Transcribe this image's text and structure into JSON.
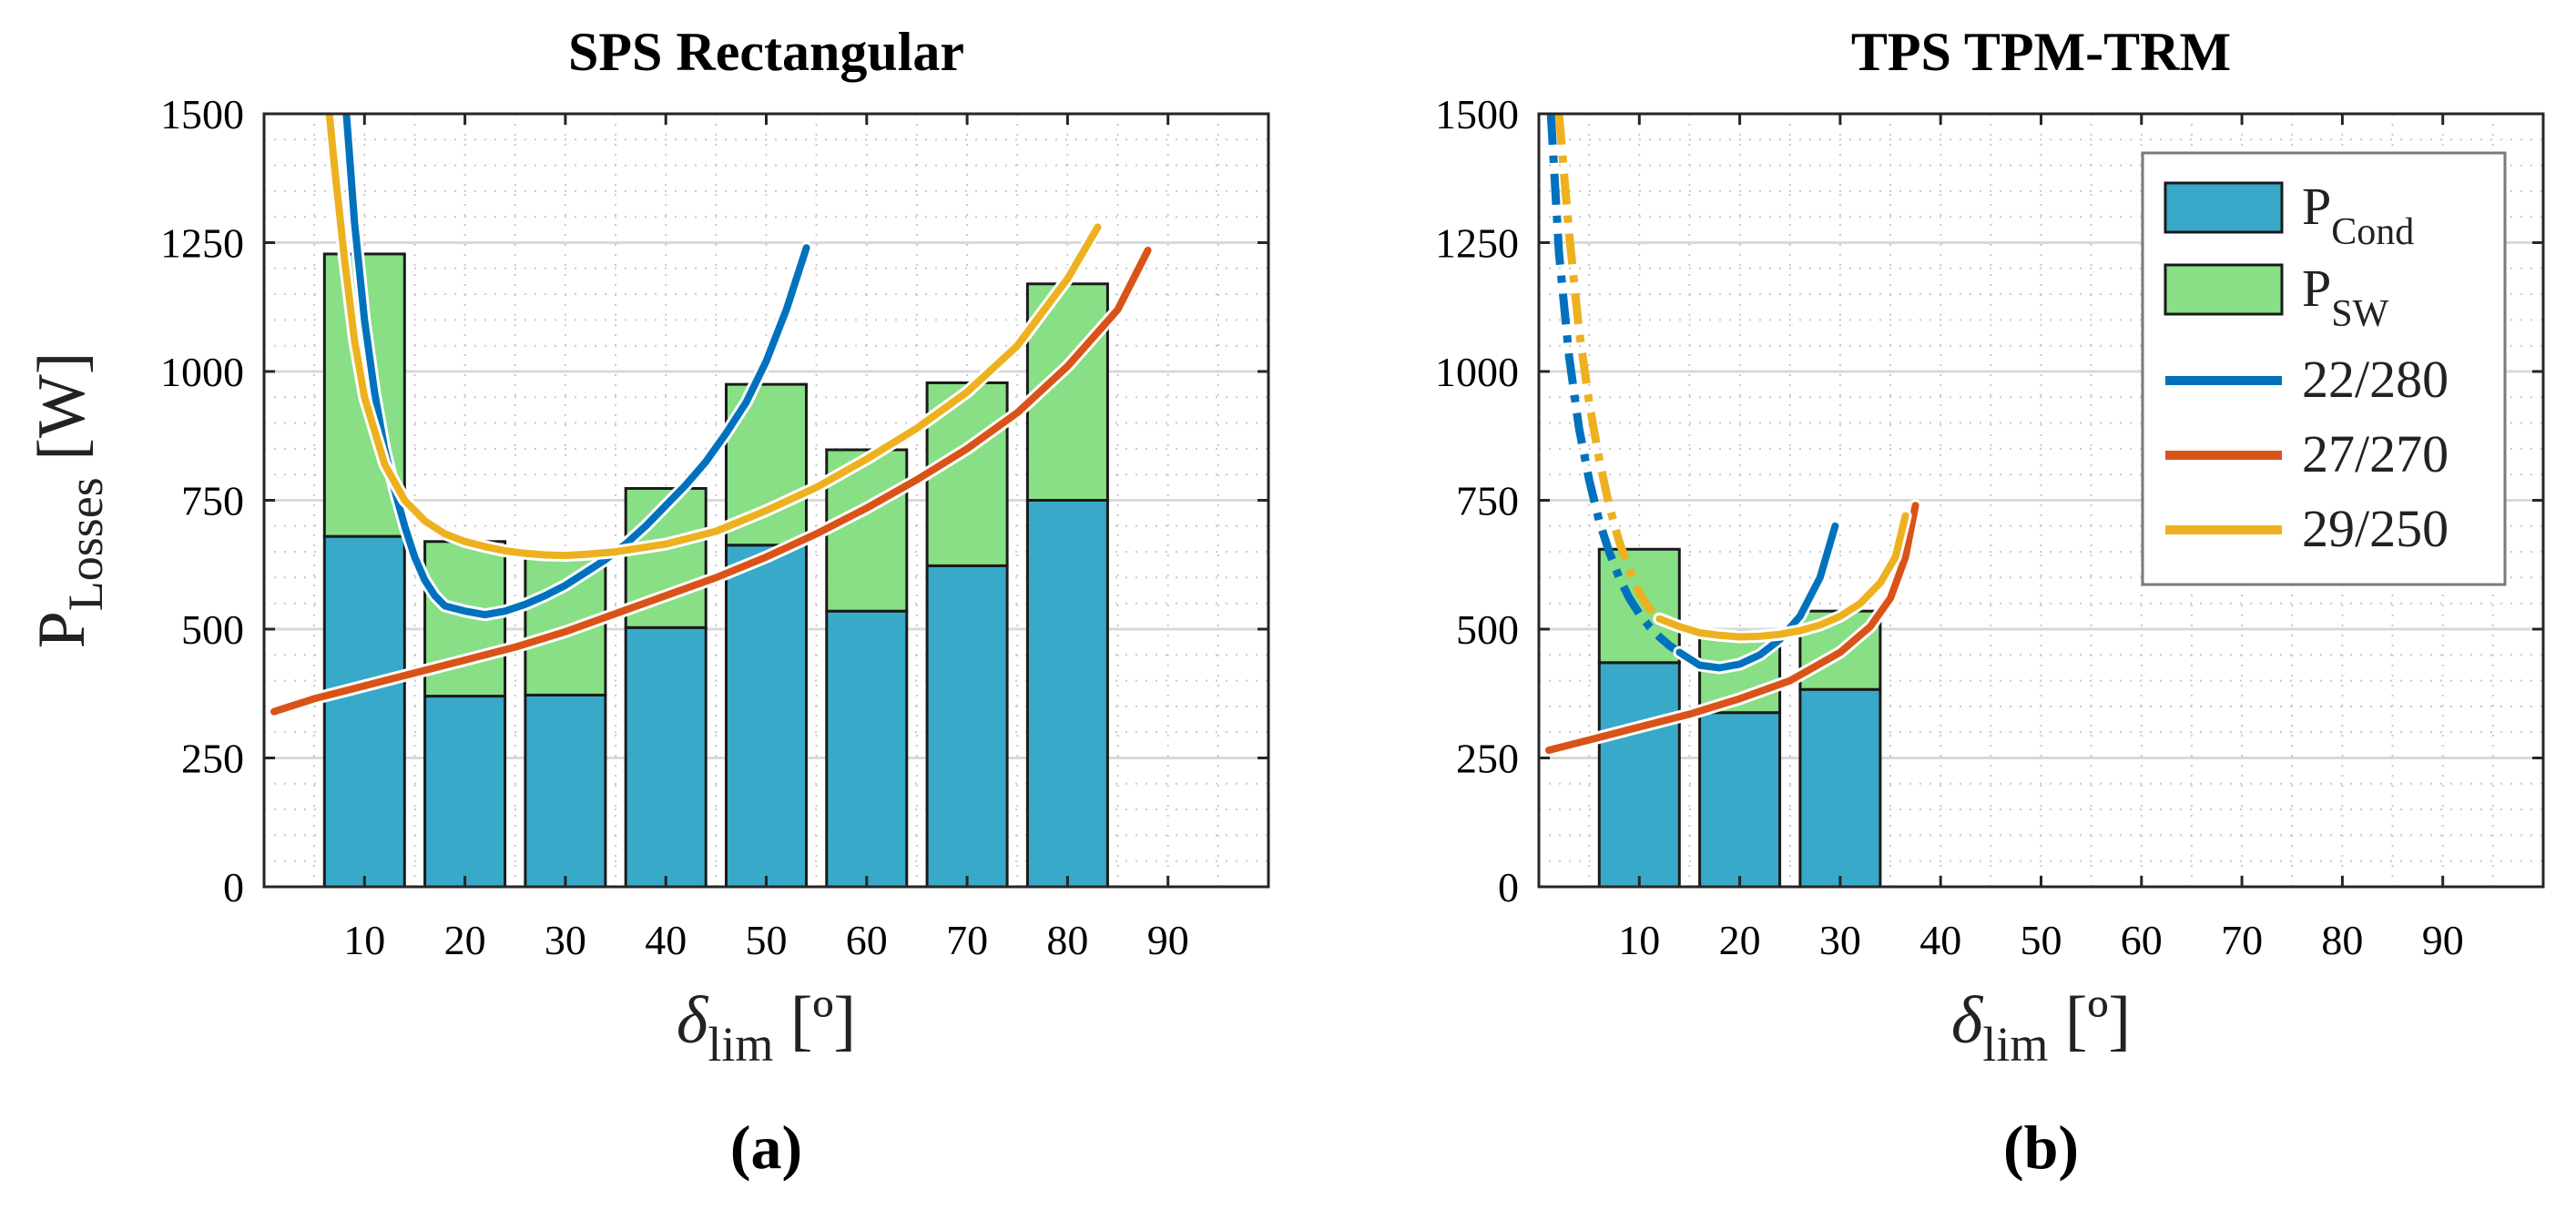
{
  "chart_data": [
    {
      "type": "bar",
      "title": "SPS Rectangular",
      "panel_label": "(a)",
      "xlabel": "δ",
      "xlabel_sub": "lim",
      "xlabel_unit": "[º]",
      "ylabel": "P",
      "ylabel_sub": "Losses",
      "ylabel_unit": "[W]",
      "xlim": [
        0,
        100
      ],
      "ylim": [
        0,
        1500
      ],
      "xticks": [
        "10",
        "20",
        "30",
        "40",
        "50",
        "60",
        "70",
        "80",
        "90"
      ],
      "yticks": [
        "0",
        "250",
        "500",
        "750",
        "1000",
        "1250",
        "1500"
      ],
      "grid": true,
      "bars": {
        "x": [
          10,
          20,
          30,
          40,
          50,
          60,
          70,
          80
        ],
        "cond": [
          680,
          370,
          372,
          503,
          663,
          535,
          623,
          750
        ],
        "sw": [
          548,
          300,
          268,
          270,
          312,
          313,
          355,
          420
        ]
      },
      "series": [
        {
          "name": "22/280",
          "color": "#0072bd",
          "x": [
            8.2,
            9,
            10,
            11,
            12,
            13,
            14,
            15,
            16,
            17,
            18,
            20,
            22,
            24,
            26,
            28,
            30,
            32,
            34,
            36,
            38,
            40,
            42,
            44,
            46,
            48,
            50,
            52,
            54
          ],
          "y": [
            1500,
            1290,
            1100,
            960,
            850,
            770,
            700,
            640,
            595,
            565,
            545,
            535,
            528,
            535,
            548,
            565,
            585,
            610,
            635,
            665,
            700,
            740,
            780,
            825,
            880,
            940,
            1020,
            1120,
            1240
          ]
        },
        {
          "name": "27/270",
          "color": "#d95319",
          "x": [
            1,
            5,
            10,
            15,
            20,
            25,
            30,
            35,
            40,
            45,
            50,
            55,
            60,
            65,
            70,
            75,
            80,
            85,
            88
          ],
          "y": [
            340,
            365,
            390,
            415,
            440,
            465,
            495,
            530,
            565,
            600,
            640,
            685,
            735,
            790,
            850,
            920,
            1010,
            1120,
            1235
          ]
        },
        {
          "name": "29/250",
          "color": "#edb120",
          "x": [
            6.5,
            7,
            8,
            9,
            10,
            12,
            14,
            16,
            18,
            20,
            22,
            24,
            26,
            28,
            30,
            32,
            35,
            40,
            45,
            50,
            55,
            60,
            65,
            70,
            75,
            80,
            83
          ],
          "y": [
            1500,
            1400,
            1220,
            1060,
            950,
            820,
            750,
            710,
            685,
            670,
            660,
            652,
            647,
            644,
            643,
            645,
            650,
            665,
            690,
            730,
            775,
            830,
            890,
            960,
            1050,
            1180,
            1280
          ]
        }
      ]
    },
    {
      "type": "bar",
      "title": "TPS TPM-TRM",
      "panel_label": "(b)",
      "xlabel": "δ",
      "xlabel_sub": "lim",
      "xlabel_unit": "[º]",
      "xlim": [
        0,
        100
      ],
      "ylim": [
        0,
        1500
      ],
      "xticks": [
        "10",
        "20",
        "30",
        "40",
        "50",
        "60",
        "70",
        "80",
        "90"
      ],
      "yticks": [
        "0",
        "250",
        "500",
        "750",
        "1000",
        "1250",
        "1500"
      ],
      "grid": true,
      "bars": {
        "x": [
          10,
          20,
          30
        ],
        "cond": [
          435,
          338,
          383
        ],
        "sw": [
          220,
          157,
          152
        ]
      },
      "series": [
        {
          "name": "22/280",
          "color": "#0072bd",
          "dashed": {
            "x": [
              1.2,
              2,
              3,
              4,
              5,
              6,
              7,
              8,
              9,
              10,
              11,
              12,
              13,
              14
            ],
            "y": [
              1500,
              1230,
              1030,
              890,
              790,
              710,
              650,
              600,
              560,
              530,
              505,
              485,
              468,
              455
            ]
          },
          "solid": {
            "x": [
              14,
              16,
              18,
              20,
              22,
              24,
              26,
              28,
              29.5
            ],
            "y": [
              455,
              430,
              425,
              432,
              450,
              480,
              525,
              600,
              700
            ]
          }
        },
        {
          "name": "27/270",
          "color": "#d95319",
          "solid": {
            "x": [
              1,
              5,
              10,
              15,
              20,
              25,
              30,
              33,
              35,
              36.5,
              37.5
            ],
            "y": [
              265,
              285,
              310,
              335,
              365,
              400,
              455,
              505,
              560,
              640,
              740
            ]
          }
        },
        {
          "name": "29/250",
          "color": "#edb120",
          "dashed": {
            "x": [
              2,
              3,
              4,
              5,
              6,
              7,
              8,
              9,
              10,
              11,
              12
            ],
            "y": [
              1500,
              1270,
              1080,
              940,
              830,
              740,
              670,
              615,
              570,
              540,
              520
            ]
          },
          "solid": {
            "x": [
              12,
              14,
              16,
              18,
              20,
              22,
              24,
              26,
              28,
              30,
              32,
              34,
              35.5,
              36.5
            ],
            "y": [
              520,
              505,
              493,
              488,
              485,
              486,
              490,
              497,
              508,
              525,
              550,
              590,
              640,
              720
            ]
          }
        }
      ],
      "legend": {
        "position": "top-right",
        "entries": [
          {
            "label": "P",
            "sub": "Cond",
            "kind": "bar",
            "color": "#38a9c8"
          },
          {
            "label": "P",
            "sub": "SW",
            "kind": "bar",
            "color": "#88df85"
          },
          {
            "label": "22/280",
            "kind": "line",
            "color": "#0072bd"
          },
          {
            "label": "27/270",
            "kind": "line",
            "color": "#d95319"
          },
          {
            "label": "29/250",
            "kind": "line",
            "color": "#edb120"
          }
        ]
      }
    }
  ],
  "colors": {
    "cond": "#38a9c8",
    "sw": "#88df85",
    "grid_major": "#d9d9d9",
    "grid_minor": "#c8c8c8"
  }
}
